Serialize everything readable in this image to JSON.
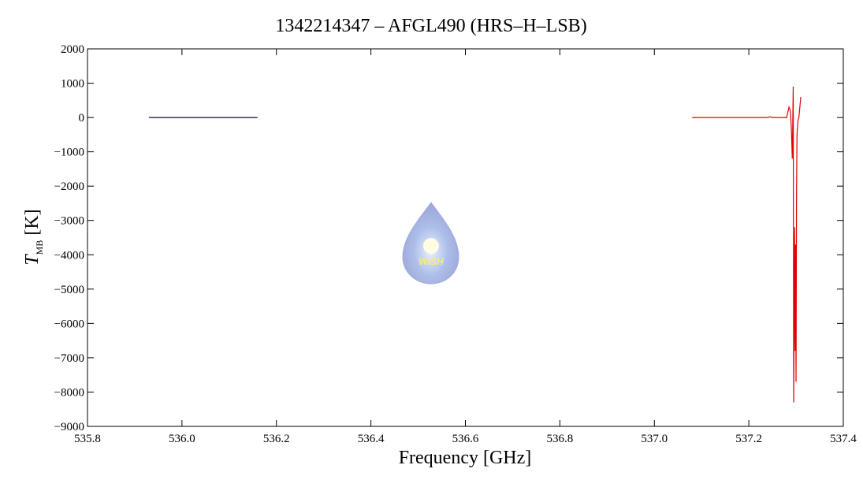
{
  "chart_data": {
    "type": "line",
    "title": "1342214347 – AFGL490 (HRS–H–LSB)",
    "xlabel": "Frequency [GHz]",
    "ylabel": "T",
    "ylabel_sub": "MB",
    "ylabel_unit": "[K]",
    "watermark": "WISH",
    "xlim": [
      535.8,
      537.4
    ],
    "xticks": [
      535.8,
      {
        "value": 536,
        "label": "536.0"
      },
      536.2,
      536.4,
      536.6,
      536.8,
      {
        "value": 537,
        "label": "537.0"
      },
      537.2,
      537.4
    ],
    "ylim": [
      -9000,
      2000
    ],
    "yticks": [
      {
        "value": -9000,
        "label": "−9000"
      },
      {
        "value": -8000,
        "label": "−8000"
      },
      {
        "value": -7000,
        "label": "−7000"
      },
      {
        "value": -6000,
        "label": "−6000"
      },
      {
        "value": -5000,
        "label": "−5000"
      },
      {
        "value": -4000,
        "label": "−4000"
      },
      {
        "value": -3000,
        "label": "−3000"
      },
      {
        "value": -2000,
        "label": "−2000"
      },
      {
        "value": -1000,
        "label": "−1000"
      },
      0,
      1000,
      2000
    ],
    "series": [
      {
        "color": "#00008b",
        "x": [
          535.93,
          536.16
        ],
        "values": [
          0,
          0
        ]
      },
      {
        "color": "#e00000",
        "x": [
          537.08,
          537.24,
          537.245,
          537.25,
          537.28,
          537.285,
          537.288,
          537.29,
          537.292,
          537.294,
          537.295,
          537.297,
          537.298,
          537.299,
          537.3,
          537.301,
          537.302,
          537.304,
          537.306,
          537.308,
          537.31
        ],
        "values": [
          0,
          0,
          20,
          0,
          0,
          300,
          200,
          -300,
          -1200,
          900,
          -8300,
          -3200,
          -6800,
          -3700,
          -7700,
          -2300,
          -500,
          -100,
          0,
          300,
          600
        ]
      }
    ]
  }
}
